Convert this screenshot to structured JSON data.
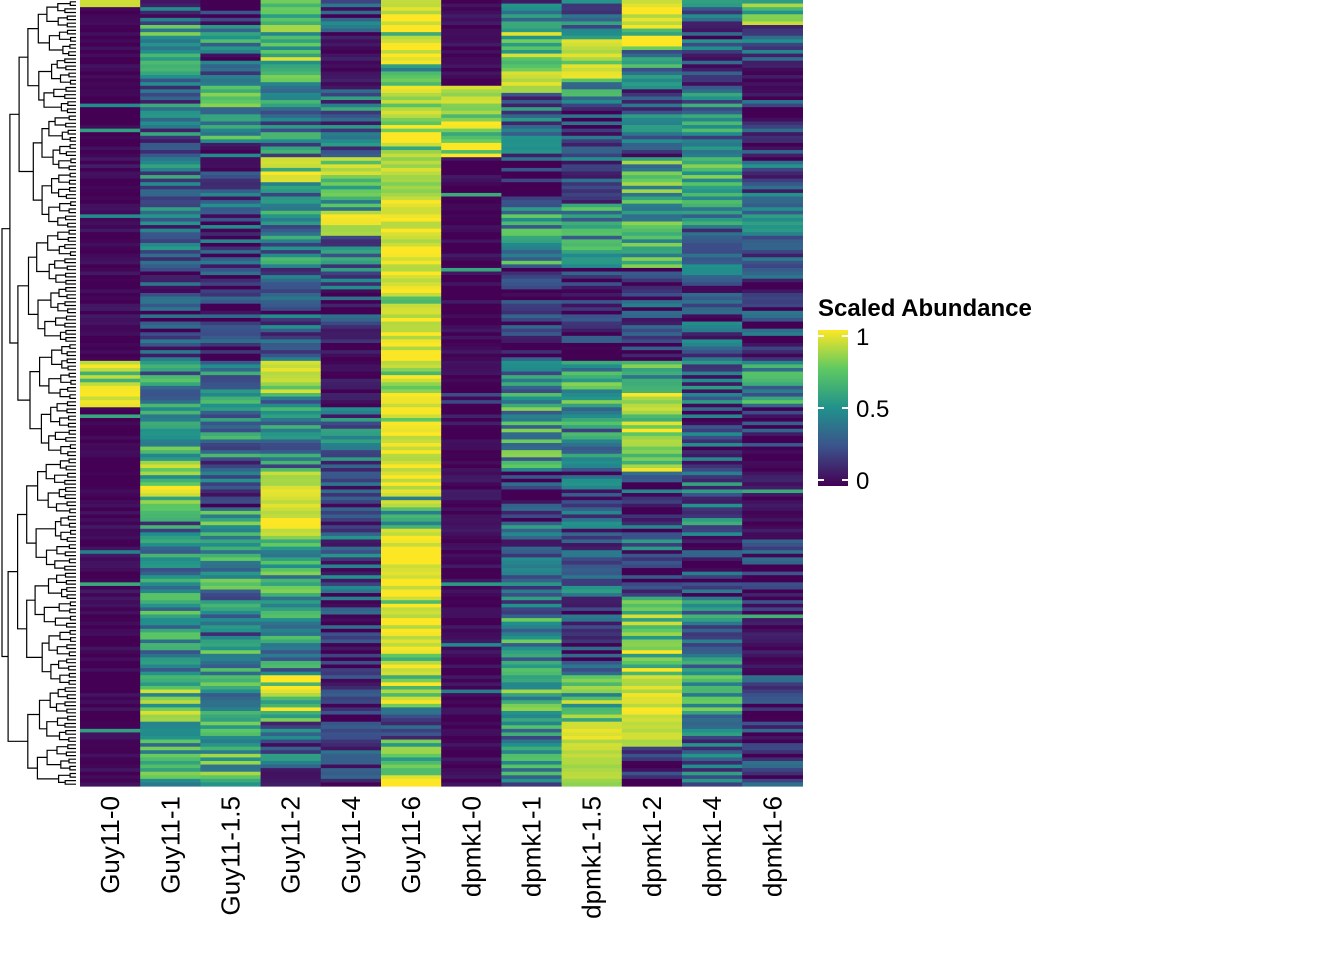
{
  "chart_data": {
    "type": "heatmap",
    "title": "",
    "xlabel": "",
    "ylabel": "",
    "columns": [
      "Guy11-0",
      "Guy11-1",
      "Guy11-1.5",
      "Guy11-2",
      "Guy11-4",
      "Guy11-6",
      "dpmk1-0",
      "dpmk1-1",
      "dpmk1-1.5",
      "dpmk1-2",
      "dpmk1-4",
      "dpmk1-6"
    ],
    "row_dendrogram": true,
    "colorscale": "viridis",
    "value_range": [
      0,
      1
    ],
    "colors": [
      "#440154",
      "#3b528b",
      "#21918c",
      "#5ec962",
      "#fde725"
    ],
    "legend": {
      "title": "Scaled Abundance",
      "ticks": [
        1,
        0.5,
        0
      ],
      "tick_labels": [
        "1",
        "0.5",
        "0"
      ],
      "placement": "right"
    },
    "column_profiles": [
      [
        [
          0,
          0.01,
          0.9
        ],
        [
          0.01,
          0.2,
          0.0
        ],
        [
          0.2,
          0.26,
          0.03
        ],
        [
          0.26,
          0.46,
          0.02
        ],
        [
          0.46,
          0.52,
          0.92
        ],
        [
          0.52,
          0.63,
          0.0
        ],
        [
          0.63,
          0.85,
          0.02
        ],
        [
          0.85,
          1.0,
          0.01
        ]
      ],
      [
        [
          0,
          0.03,
          0.3
        ],
        [
          0.03,
          0.09,
          0.55
        ],
        [
          0.09,
          0.2,
          0.35
        ],
        [
          0.2,
          0.26,
          0.42
        ],
        [
          0.26,
          0.34,
          0.3
        ],
        [
          0.34,
          0.46,
          0.2
        ],
        [
          0.46,
          0.52,
          0.45
        ],
        [
          0.52,
          0.58,
          0.55
        ],
        [
          0.58,
          0.65,
          0.75
        ],
        [
          0.65,
          0.75,
          0.4
        ],
        [
          0.75,
          0.86,
          0.5
        ],
        [
          0.86,
          0.92,
          0.7
        ],
        [
          0.92,
          1.0,
          0.55
        ]
      ],
      [
        [
          0,
          0.03,
          0.1
        ],
        [
          0.03,
          0.07,
          0.45
        ],
        [
          0.07,
          0.11,
          0.2
        ],
        [
          0.11,
          0.18,
          0.6
        ],
        [
          0.18,
          0.22,
          0.04
        ],
        [
          0.22,
          0.34,
          0.25
        ],
        [
          0.34,
          0.46,
          0.15
        ],
        [
          0.46,
          0.52,
          0.5
        ],
        [
          0.52,
          0.58,
          0.45
        ],
        [
          0.58,
          0.65,
          0.25
        ],
        [
          0.65,
          0.75,
          0.55
        ],
        [
          0.75,
          0.82,
          0.4
        ],
        [
          0.82,
          0.9,
          0.55
        ],
        [
          0.9,
          1.0,
          0.65
        ]
      ],
      [
        [
          0,
          0.03,
          0.5
        ],
        [
          0.03,
          0.08,
          0.7
        ],
        [
          0.08,
          0.11,
          0.55
        ],
        [
          0.11,
          0.2,
          0.4
        ],
        [
          0.2,
          0.23,
          0.92
        ],
        [
          0.23,
          0.34,
          0.45
        ],
        [
          0.34,
          0.46,
          0.25
        ],
        [
          0.46,
          0.5,
          0.92
        ],
        [
          0.5,
          0.6,
          0.45
        ],
        [
          0.6,
          0.68,
          0.93
        ],
        [
          0.68,
          0.78,
          0.6
        ],
        [
          0.78,
          0.86,
          0.45
        ],
        [
          0.86,
          0.92,
          0.78
        ],
        [
          0.92,
          1.0,
          0.3
        ]
      ],
      [
        [
          0,
          0.05,
          0.25
        ],
        [
          0.05,
          0.11,
          0.05
        ],
        [
          0.11,
          0.14,
          0.35
        ],
        [
          0.14,
          0.2,
          0.3
        ],
        [
          0.2,
          0.24,
          0.8
        ],
        [
          0.24,
          0.27,
          0.55
        ],
        [
          0.27,
          0.3,
          0.93
        ],
        [
          0.3,
          0.37,
          0.4
        ],
        [
          0.37,
          0.46,
          0.12
        ],
        [
          0.46,
          0.52,
          0.05
        ],
        [
          0.52,
          0.62,
          0.3
        ],
        [
          0.62,
          0.78,
          0.25
        ],
        [
          0.78,
          0.9,
          0.08
        ],
        [
          0.9,
          1.0,
          0.15
        ]
      ],
      [
        [
          0,
          0.03,
          0.95
        ],
        [
          0.03,
          0.08,
          0.96
        ],
        [
          0.08,
          0.11,
          0.5
        ],
        [
          0.11,
          0.12,
          0.95
        ],
        [
          0.12,
          0.18,
          0.85
        ],
        [
          0.18,
          0.25,
          0.88
        ],
        [
          0.25,
          0.47,
          0.95
        ],
        [
          0.47,
          0.5,
          0.85
        ],
        [
          0.5,
          0.63,
          0.95
        ],
        [
          0.63,
          0.67,
          0.7
        ],
        [
          0.67,
          0.86,
          0.96
        ],
        [
          0.86,
          0.9,
          0.8
        ],
        [
          0.9,
          0.94,
          0.35
        ],
        [
          0.94,
          1.0,
          0.8
        ]
      ],
      [
        [
          0,
          0.11,
          0.03
        ],
        [
          0.11,
          0.13,
          0.75
        ],
        [
          0.13,
          0.2,
          0.82
        ],
        [
          0.2,
          0.5,
          0.02
        ],
        [
          0.5,
          0.54,
          0.08
        ],
        [
          0.54,
          0.65,
          0.04
        ],
        [
          0.65,
          1.0,
          0.02
        ]
      ],
      [
        [
          0,
          0.03,
          0.35
        ],
        [
          0.03,
          0.09,
          0.7
        ],
        [
          0.09,
          0.12,
          0.9
        ],
        [
          0.12,
          0.2,
          0.35
        ],
        [
          0.2,
          0.26,
          0.1
        ],
        [
          0.26,
          0.34,
          0.5
        ],
        [
          0.34,
          0.46,
          0.08
        ],
        [
          0.46,
          0.52,
          0.45
        ],
        [
          0.52,
          0.6,
          0.55
        ],
        [
          0.6,
          0.67,
          0.1
        ],
        [
          0.67,
          0.78,
          0.3
        ],
        [
          0.78,
          0.86,
          0.5
        ],
        [
          0.86,
          0.92,
          0.6
        ],
        [
          0.92,
          1.0,
          0.45
        ]
      ],
      [
        [
          0,
          0.05,
          0.3
        ],
        [
          0.05,
          0.1,
          0.9
        ],
        [
          0.1,
          0.13,
          0.55
        ],
        [
          0.13,
          0.2,
          0.15
        ],
        [
          0.2,
          0.26,
          0.3
        ],
        [
          0.26,
          0.34,
          0.5
        ],
        [
          0.34,
          0.46,
          0.08
        ],
        [
          0.46,
          0.52,
          0.55
        ],
        [
          0.52,
          0.58,
          0.45
        ],
        [
          0.58,
          0.68,
          0.25
        ],
        [
          0.68,
          0.76,
          0.3
        ],
        [
          0.76,
          0.86,
          0.15
        ],
        [
          0.86,
          0.92,
          0.7
        ],
        [
          0.92,
          1.0,
          0.9
        ]
      ],
      [
        [
          0,
          0.03,
          0.95
        ],
        [
          0.03,
          0.06,
          0.8
        ],
        [
          0.06,
          0.09,
          0.5
        ],
        [
          0.09,
          0.2,
          0.3
        ],
        [
          0.2,
          0.25,
          0.6
        ],
        [
          0.25,
          0.34,
          0.55
        ],
        [
          0.34,
          0.46,
          0.15
        ],
        [
          0.46,
          0.5,
          0.55
        ],
        [
          0.5,
          0.6,
          0.82
        ],
        [
          0.6,
          0.68,
          0.2
        ],
        [
          0.68,
          0.72,
          0.3
        ],
        [
          0.72,
          0.76,
          0.15
        ],
        [
          0.76,
          0.86,
          0.8
        ],
        [
          0.86,
          0.95,
          0.93
        ],
        [
          0.95,
          1.0,
          0.1
        ]
      ],
      [
        [
          0,
          0.03,
          0.35
        ],
        [
          0.03,
          0.08,
          0.25
        ],
        [
          0.08,
          0.11,
          0.15
        ],
        [
          0.11,
          0.2,
          0.45
        ],
        [
          0.2,
          0.26,
          0.55
        ],
        [
          0.26,
          0.34,
          0.4
        ],
        [
          0.34,
          0.46,
          0.25
        ],
        [
          0.46,
          0.52,
          0.3
        ],
        [
          0.52,
          0.6,
          0.25
        ],
        [
          0.6,
          0.68,
          0.35
        ],
        [
          0.68,
          0.76,
          0.15
        ],
        [
          0.76,
          0.86,
          0.4
        ],
        [
          0.86,
          0.92,
          0.55
        ],
        [
          0.92,
          1.0,
          0.3
        ]
      ],
      [
        [
          0,
          0.03,
          0.75
        ],
        [
          0.03,
          0.08,
          0.3
        ],
        [
          0.08,
          0.12,
          0.05
        ],
        [
          0.12,
          0.2,
          0.15
        ],
        [
          0.2,
          0.26,
          0.25
        ],
        [
          0.26,
          0.34,
          0.35
        ],
        [
          0.34,
          0.46,
          0.15
        ],
        [
          0.46,
          0.52,
          0.5
        ],
        [
          0.52,
          0.6,
          0.08
        ],
        [
          0.6,
          0.68,
          0.05
        ],
        [
          0.68,
          0.78,
          0.12
        ],
        [
          0.78,
          0.86,
          0.05
        ],
        [
          0.86,
          1.0,
          0.1
        ]
      ]
    ]
  }
}
